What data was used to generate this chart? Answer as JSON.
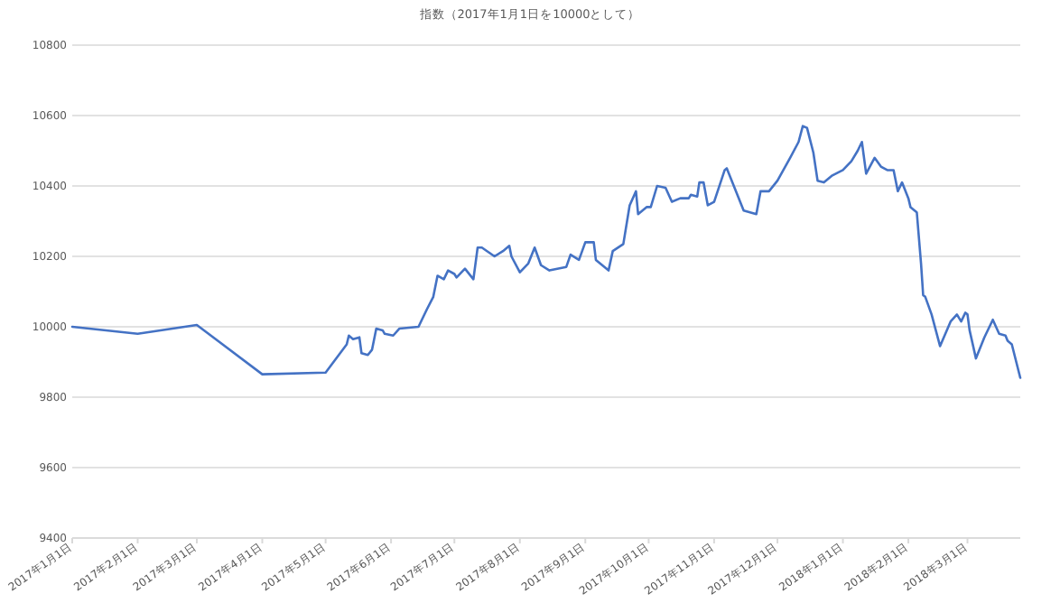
{
  "chart_data": {
    "type": "line",
    "title": "指数（2017年1月1日を10000として）",
    "x": [
      "2017-01-01",
      "2017-02-01",
      "2017-03-01",
      "2017-04-01",
      "2017-05-01",
      "2017-05-11",
      "2017-05-12",
      "2017-05-14",
      "2017-05-17",
      "2017-05-18",
      "2017-05-21",
      "2017-05-23",
      "2017-05-25",
      "2017-05-28",
      "2017-05-29",
      "2017-06-02",
      "2017-06-05",
      "2017-06-14",
      "2017-06-18",
      "2017-06-21",
      "2017-06-23",
      "2017-06-26",
      "2017-06-28",
      "2017-07-01",
      "2017-07-02",
      "2017-07-06",
      "2017-07-10",
      "2017-07-12",
      "2017-07-14",
      "2017-07-20",
      "2017-07-24",
      "2017-07-27",
      "2017-07-28",
      "2017-08-01",
      "2017-08-05",
      "2017-08-08",
      "2017-08-11",
      "2017-08-15",
      "2017-08-23",
      "2017-08-25",
      "2017-08-29",
      "2017-09-01",
      "2017-09-05",
      "2017-09-06",
      "2017-09-12",
      "2017-09-14",
      "2017-09-19",
      "2017-09-22",
      "2017-09-25",
      "2017-09-26",
      "2017-09-30",
      "2017-10-02",
      "2017-10-05",
      "2017-10-09",
      "2017-10-12",
      "2017-10-16",
      "2017-10-20",
      "2017-10-21",
      "2017-10-24",
      "2017-10-25",
      "2017-10-27",
      "2017-10-29",
      "2017-11-01",
      "2017-11-06",
      "2017-11-07",
      "2017-11-15",
      "2017-11-21",
      "2017-11-23",
      "2017-11-27",
      "2017-12-01",
      "2017-12-07",
      "2017-12-11",
      "2017-12-13",
      "2017-12-15",
      "2017-12-18",
      "2017-12-20",
      "2017-12-23",
      "2017-12-27",
      "2018-01-01",
      "2018-01-05",
      "2018-01-08",
      "2018-01-10",
      "2018-01-12",
      "2018-01-16",
      "2018-01-19",
      "2018-01-22",
      "2018-01-25",
      "2018-01-27",
      "2018-01-29",
      "2018-02-01",
      "2018-02-02",
      "2018-02-05",
      "2018-02-07",
      "2018-02-08",
      "2018-02-09",
      "2018-02-12",
      "2018-02-16",
      "2018-02-21",
      "2018-02-24",
      "2018-02-26",
      "2018-02-28",
      "2018-03-01",
      "2018-03-02",
      "2018-03-05",
      "2018-03-09",
      "2018-03-13",
      "2018-03-16",
      "2018-03-19",
      "2018-03-20",
      "2018-03-22",
      "2018-03-26"
    ],
    "series": [
      {
        "color": "#4472c4",
        "values": [
          10000,
          9980,
          10005,
          9865,
          9870,
          9950,
          9975,
          9965,
          9970,
          9925,
          9920,
          9935,
          9995,
          9990,
          9980,
          9975,
          9995,
          10000,
          10050,
          10085,
          10145,
          10135,
          10160,
          10150,
          10140,
          10165,
          10135,
          10225,
          10225,
          10200,
          10215,
          10230,
          10200,
          10155,
          10180,
          10225,
          10175,
          10160,
          10170,
          10205,
          10190,
          10240,
          10240,
          10190,
          10160,
          10215,
          10235,
          10345,
          10385,
          10320,
          10340,
          10340,
          10400,
          10395,
          10355,
          10365,
          10365,
          10375,
          10370,
          10410,
          10410,
          10345,
          10355,
          10445,
          10450,
          10330,
          10320,
          10385,
          10385,
          10415,
          10480,
          10525,
          10570,
          10565,
          10495,
          10415,
          10410,
          10430,
          10445,
          10470,
          10500,
          10525,
          10435,
          10480,
          10455,
          10445,
          10445,
          10385,
          10410,
          10365,
          10340,
          10325,
          10180,
          10090,
          10085,
          10035,
          9945,
          10015,
          10035,
          10015,
          10040,
          10035,
          9990,
          9910,
          9970,
          10020,
          9980,
          9975,
          9960,
          9950,
          9855
        ]
      }
    ],
    "xlim": [
      "2017-01-01",
      "2018-03-26"
    ],
    "xticks": [
      {
        "value": "2017-01-01",
        "label": "2017年1月1日"
      },
      {
        "value": "2017-02-01",
        "label": "2017年2月1日"
      },
      {
        "value": "2017-03-01",
        "label": "2017年3月1日"
      },
      {
        "value": "2017-04-01",
        "label": "2017年4月1日"
      },
      {
        "value": "2017-05-01",
        "label": "2017年5月1日"
      },
      {
        "value": "2017-06-01",
        "label": "2017年6月1日"
      },
      {
        "value": "2017-07-01",
        "label": "2017年7月1日"
      },
      {
        "value": "2017-08-01",
        "label": "2017年8月1日"
      },
      {
        "value": "2017-09-01",
        "label": "2017年9月1日"
      },
      {
        "value": "2017-10-01",
        "label": "2017年10月1日"
      },
      {
        "value": "2017-11-01",
        "label": "2017年11月1日"
      },
      {
        "value": "2017-12-01",
        "label": "2017年12月1日"
      },
      {
        "value": "2018-01-01",
        "label": "2018年1月1日"
      },
      {
        "value": "2018-02-01",
        "label": "2018年2月1日"
      },
      {
        "value": "2018-03-01",
        "label": "2018年3月1日"
      }
    ],
    "ylim": [
      9400,
      10800
    ],
    "yticks": [
      9400,
      9600,
      9800,
      10000,
      10200,
      10400,
      10600,
      10800
    ],
    "grid": "y",
    "marker": "none",
    "line_style": "solid"
  }
}
